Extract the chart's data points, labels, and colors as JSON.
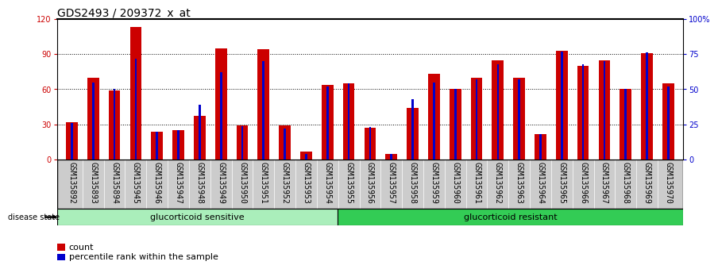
{
  "title": "GDS2493 / 209372_x_at",
  "categories": [
    "GSM135892",
    "GSM135893",
    "GSM135894",
    "GSM135945",
    "GSM135946",
    "GSM135947",
    "GSM135948",
    "GSM135949",
    "GSM135950",
    "GSM135951",
    "GSM135952",
    "GSM135953",
    "GSM135954",
    "GSM135955",
    "GSM135956",
    "GSM135957",
    "GSM135958",
    "GSM135959",
    "GSM135960",
    "GSM135961",
    "GSM135962",
    "GSM135963",
    "GSM135964",
    "GSM135965",
    "GSM135966",
    "GSM135967",
    "GSM135968",
    "GSM135969",
    "GSM135970"
  ],
  "count_values": [
    32,
    70,
    59,
    113,
    24,
    25,
    37,
    95,
    29,
    94,
    29,
    7,
    64,
    65,
    27,
    5,
    44,
    73,
    60,
    70,
    85,
    70,
    22,
    93,
    80,
    85,
    60,
    91,
    65
  ],
  "percentile_values": [
    26,
    55,
    50,
    72,
    20,
    21,
    39,
    62,
    24,
    70,
    22,
    4,
    52,
    54,
    23,
    4,
    43,
    55,
    50,
    57,
    68,
    57,
    18,
    77,
    68,
    70,
    50,
    76,
    52
  ],
  "group1_count": 13,
  "group2_count": 16,
  "group1_label": "glucorticoid sensitive",
  "group2_label": "glucorticoid resistant",
  "group_label_prefix": "disease state",
  "ylim_left": [
    0,
    120
  ],
  "ylim_right": [
    0,
    100
  ],
  "yticks_left": [
    0,
    30,
    60,
    90,
    120
  ],
  "yticks_right": [
    0,
    25,
    50,
    75,
    100
  ],
  "ytick_labels_right": [
    "0",
    "25",
    "50",
    "75",
    "100%"
  ],
  "bar_color": "#cc0000",
  "percentile_color": "#0000cc",
  "bar_width": 0.55,
  "bg_color": "#ffffff",
  "group1_color": "#aaeebb",
  "group2_color": "#33cc55",
  "title_fontsize": 10,
  "tick_fontsize": 7,
  "legend_fontsize": 8,
  "xtick_bg_color": "#cccccc"
}
